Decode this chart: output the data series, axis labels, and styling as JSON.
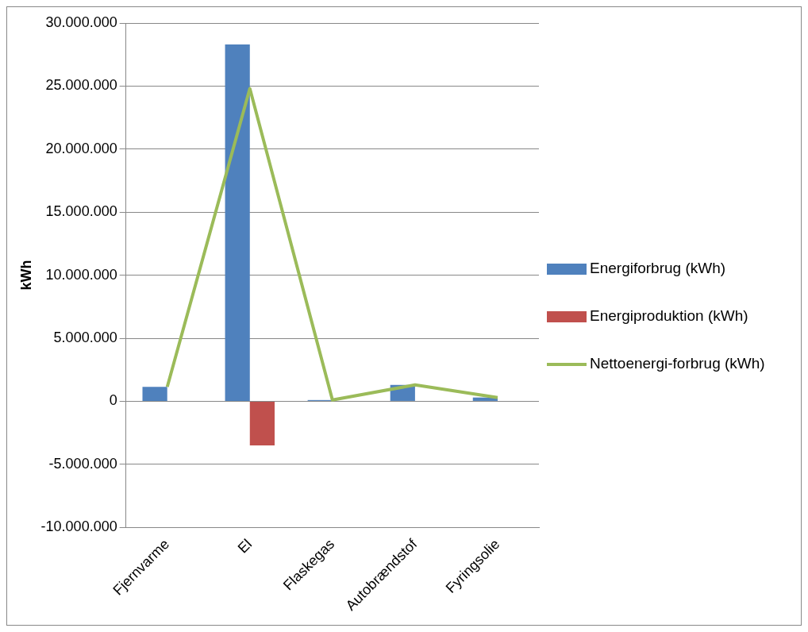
{
  "chart_data": {
    "type": "bar",
    "ylabel": "kWh",
    "categories": [
      "Fjernvarme",
      "El",
      "Flaskegas",
      "Autobrændstof",
      "Fyringsolie"
    ],
    "series": [
      {
        "name": "Energiforbrug (kWh)",
        "color": "#4f81bd",
        "values": [
          1150000,
          28300000,
          100000,
          1300000,
          300000
        ]
      },
      {
        "name": "Energiproduktion (kWh)",
        "color": "#c0504d",
        "values": [
          null,
          -3500000,
          null,
          null,
          null
        ]
      },
      {
        "name": "Nettoenergi-forbrug (kWh)",
        "type": "line",
        "color": "#9bbb59",
        "values": [
          1150000,
          24800000,
          100000,
          1300000,
          300000
        ]
      }
    ],
    "ylim": [
      -10000000,
      30000000
    ],
    "yticks": [
      {
        "value": -10000000,
        "label": "-10.000.000"
      },
      {
        "value": -5000000,
        "label": "-5.000.000"
      },
      {
        "value": 0,
        "label": "0"
      },
      {
        "value": 5000000,
        "label": "5.000.000"
      },
      {
        "value": 10000000,
        "label": "10.000.000"
      },
      {
        "value": 15000000,
        "label": "15.000.000"
      },
      {
        "value": 20000000,
        "label": "20.000.000"
      },
      {
        "value": 25000000,
        "label": "25.000.000"
      },
      {
        "value": 30000000,
        "label": "30.000.000"
      }
    ],
    "grid": "y",
    "legend": "right",
    "marker": "none"
  }
}
